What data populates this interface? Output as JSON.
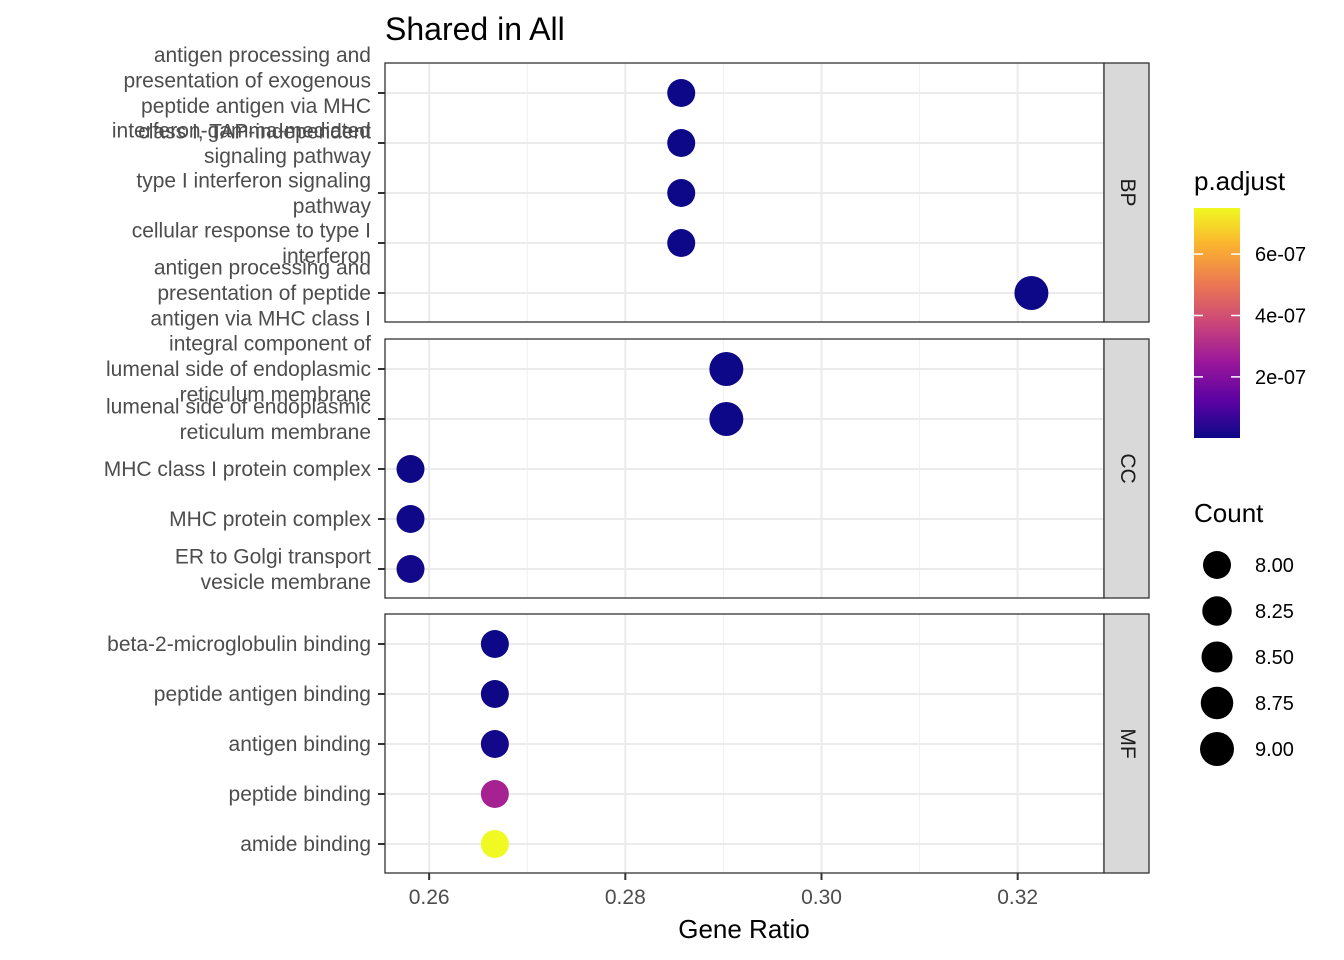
{
  "chart_data": {
    "type": "scatter",
    "title": "Shared in All",
    "xlabel": "Gene Ratio",
    "ylabel": "",
    "xlim": [
      0.2555,
      0.3288
    ],
    "x_ticks": [
      "0.26",
      "0.28",
      "0.30",
      "0.32"
    ],
    "x_tick_values": [
      0.26,
      0.28,
      0.3,
      0.32
    ],
    "grid": true,
    "facets": [
      {
        "name": "BP",
        "points": [
          {
            "label": "antigen processing and presentation of exogenous peptide antigen via MHC class I, TAP-independent",
            "x": 0.2857,
            "count": 8,
            "p_adjust": 1e-09
          },
          {
            "label": "interferon-gamma-mediated signaling pathway",
            "x": 0.2857,
            "count": 8,
            "p_adjust": 1.2e-09
          },
          {
            "label": "type I interferon signaling pathway",
            "x": 0.2857,
            "count": 8,
            "p_adjust": 1.5e-09
          },
          {
            "label": "cellular response to type I interferon",
            "x": 0.2857,
            "count": 8,
            "p_adjust": 1.5e-09
          },
          {
            "label": "antigen processing and presentation of peptide antigen via MHC class I",
            "x": 0.3214,
            "count": 9,
            "p_adjust": 1e-09
          }
        ]
      },
      {
        "name": "CC",
        "points": [
          {
            "label": "integral component of lumenal side of endoplasmic reticulum membrane",
            "x": 0.2903,
            "count": 9,
            "p_adjust": 1e-09
          },
          {
            "label": "lumenal side of endoplasmic reticulum membrane",
            "x": 0.2903,
            "count": 9,
            "p_adjust": 1e-09
          },
          {
            "label": "MHC class I protein complex",
            "x": 0.2581,
            "count": 8,
            "p_adjust": 2e-09
          },
          {
            "label": "MHC protein complex",
            "x": 0.2581,
            "count": 8,
            "p_adjust": 5e-09
          },
          {
            "label": "ER to Golgi transport vesicle membrane",
            "x": 0.2581,
            "count": 8,
            "p_adjust": 1e-08
          }
        ]
      },
      {
        "name": "MF",
        "points": [
          {
            "label": "beta-2-microglobulin binding",
            "x": 0.2667,
            "count": 8,
            "p_adjust": 1e-09
          },
          {
            "label": "peptide antigen binding",
            "x": 0.2667,
            "count": 8,
            "p_adjust": 3e-09
          },
          {
            "label": "antigen binding",
            "x": 0.2667,
            "count": 8,
            "p_adjust": 1e-08
          },
          {
            "label": "peptide binding",
            "x": 0.2667,
            "count": 8,
            "p_adjust": 2.8e-07
          },
          {
            "label": "amide binding",
            "x": 0.2667,
            "count": 8,
            "p_adjust": 7.5e-07
          }
        ]
      }
    ],
    "color_legend": {
      "title": "p.adjust",
      "range": [
        1e-09,
        7.5e-07
      ],
      "ticks": [
        "6e-07",
        "4e-07",
        "2e-07"
      ],
      "tick_values": [
        6e-07,
        4e-07,
        2e-07
      ],
      "colors": [
        "#0d0887",
        "#5b02a3",
        "#9a179b",
        "#cb4678",
        "#eb7852",
        "#fbb32f",
        "#f0f921"
      ]
    },
    "size_legend": {
      "title": "Count",
      "labels": [
        "8.00",
        "8.25",
        "8.50",
        "8.75",
        "9.00"
      ],
      "values": [
        8.0,
        8.25,
        8.5,
        8.75,
        9.0
      ]
    },
    "legend_placement": "right"
  }
}
